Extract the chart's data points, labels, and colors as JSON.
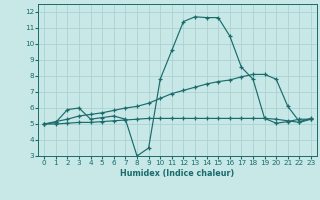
{
  "xlabel": "Humidex (Indice chaleur)",
  "xlim": [
    -0.5,
    23.5
  ],
  "ylim": [
    3,
    12.5
  ],
  "xticks": [
    0,
    1,
    2,
    3,
    4,
    5,
    6,
    7,
    8,
    9,
    10,
    11,
    12,
    13,
    14,
    15,
    16,
    17,
    18,
    19,
    20,
    21,
    22,
    23
  ],
  "yticks": [
    3,
    4,
    5,
    6,
    7,
    8,
    9,
    10,
    11,
    12
  ],
  "bg_color": "#c8e8e8",
  "grid_color": "#a8cccc",
  "line_color": "#1a6b6b",
  "line1_y": [
    5.0,
    5.1,
    5.9,
    6.0,
    5.3,
    5.4,
    5.5,
    5.3,
    3.0,
    3.5,
    7.8,
    9.6,
    11.4,
    11.7,
    11.65,
    11.65,
    10.5,
    8.55,
    7.8,
    5.35,
    5.05,
    5.15,
    5.3,
    5.3
  ],
  "line2_y": [
    5.0,
    5.15,
    5.3,
    5.5,
    5.6,
    5.7,
    5.85,
    6.0,
    6.1,
    6.3,
    6.6,
    6.9,
    7.1,
    7.3,
    7.5,
    7.65,
    7.75,
    7.95,
    8.1,
    8.1,
    7.8,
    6.1,
    5.15,
    5.35
  ],
  "line3_y": [
    5.0,
    5.0,
    5.05,
    5.1,
    5.1,
    5.15,
    5.2,
    5.25,
    5.3,
    5.35,
    5.35,
    5.35,
    5.35,
    5.35,
    5.35,
    5.35,
    5.35,
    5.35,
    5.35,
    5.35,
    5.3,
    5.2,
    5.1,
    5.3
  ]
}
